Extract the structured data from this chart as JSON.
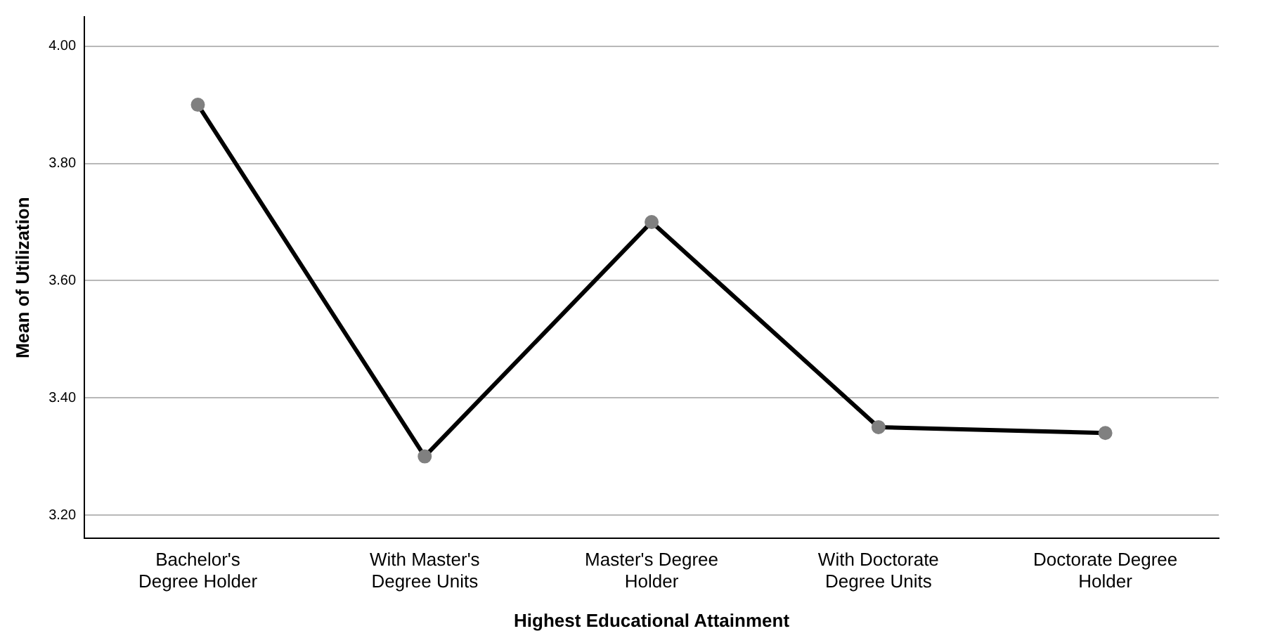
{
  "chart_data": {
    "type": "line",
    "xlabel": "Highest Educational Attainment",
    "ylabel": "Mean of Utilization",
    "categories": [
      "Bachelor's Degree Holder",
      "With Master's Degree Units",
      "Master's Degree Holder",
      "With Doctorate Degree Units",
      "Doctorate Degree Holder"
    ],
    "series": [
      {
        "color": "#000000",
        "values": [
          3.9,
          3.3,
          3.7,
          3.35,
          3.34
        ]
      }
    ],
    "ylim": [
      3.16,
      4.05
    ],
    "yticks": [
      {
        "value": 3.2,
        "label": "3.20"
      },
      {
        "value": 3.4,
        "label": "3.40"
      },
      {
        "value": 3.6,
        "label": "3.60"
      },
      {
        "value": 3.8,
        "label": "3.80"
      },
      {
        "value": 4.0,
        "label": "4.00"
      }
    ],
    "grid": "y",
    "marker": "circle",
    "line_style": "solid",
    "legend": false
  }
}
